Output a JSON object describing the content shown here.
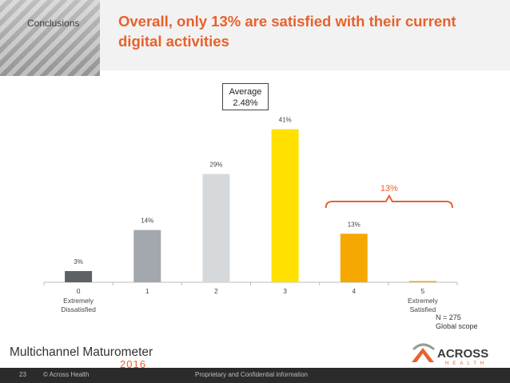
{
  "section_label": "Conclusions",
  "title": "Overall, only 13% are satisfied with their current digital activities",
  "average": {
    "label": "Average",
    "value": "2.48%"
  },
  "chart_data": {
    "type": "bar",
    "categories": [
      "0",
      "1",
      "2",
      "3",
      "4",
      "5"
    ],
    "category_sublabels": [
      "Extremely\nDissatisfied",
      "",
      "",
      "",
      "",
      "Extremely\nSatisfied"
    ],
    "values": [
      3,
      14,
      29,
      41,
      13,
      0.3
    ],
    "value_labels": [
      "3%",
      "14%",
      "29%",
      "41%",
      "13%",
      ""
    ],
    "colors": [
      "#5d6166",
      "#a2a8ae",
      "#d6d9dc",
      "#ffe000",
      "#f5a800",
      "#f5a800"
    ],
    "ylim": [
      0,
      45
    ],
    "bracket": {
      "label": "13%",
      "spans": [
        "4",
        "5"
      ],
      "color": "#e8612c"
    }
  },
  "note": {
    "line1": "N = 275",
    "line2": "Global scope"
  },
  "brand": {
    "left_name": "Multichannel Maturometer",
    "left_year": "2016",
    "right_name": "ACROSS",
    "right_sub": "HEALTH",
    "accent": "#e8612c"
  },
  "footer": {
    "page": "23",
    "copyright": "© Across Health",
    "confidentiality": "Proprietary and Confidential information"
  }
}
